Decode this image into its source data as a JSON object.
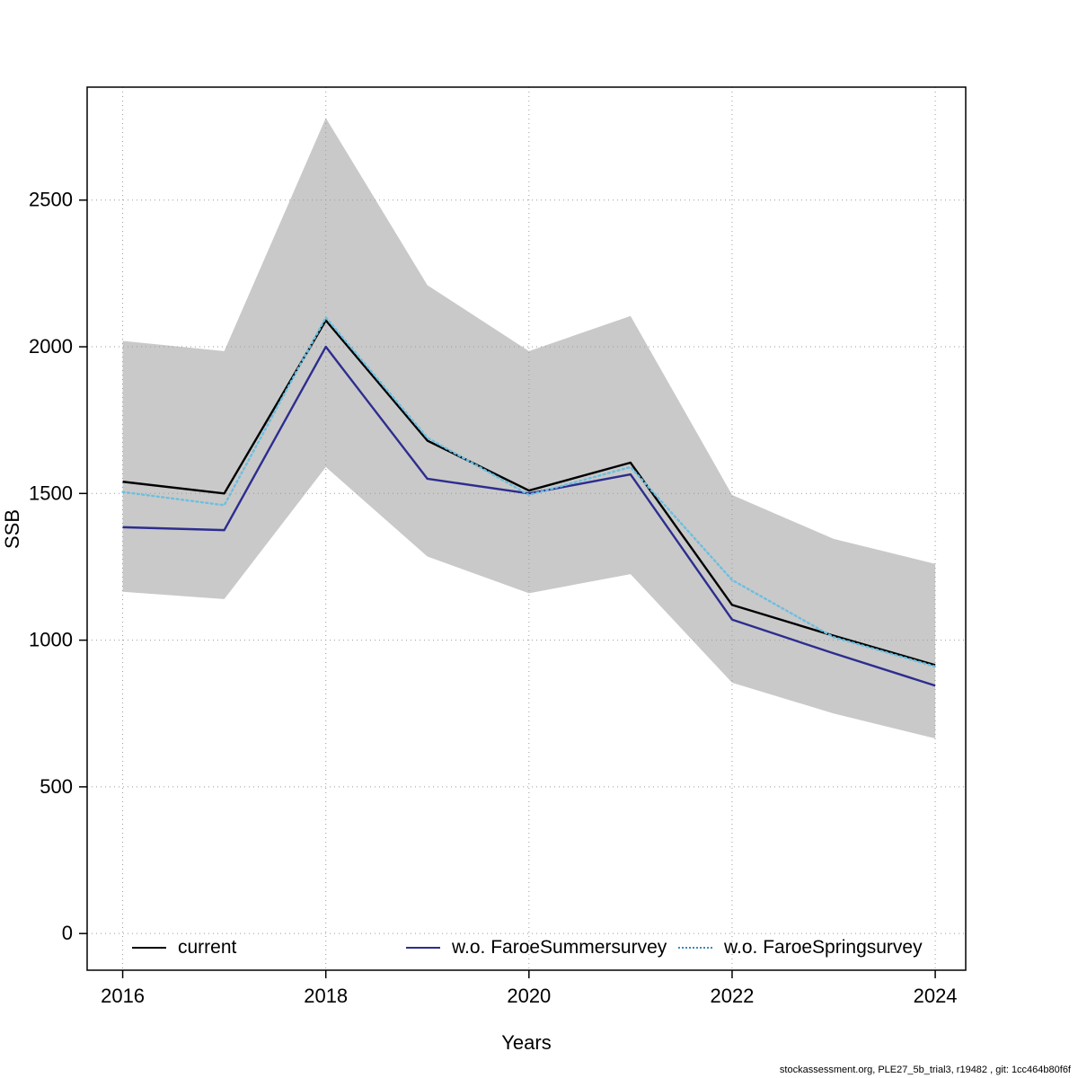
{
  "chart_data": {
    "type": "line",
    "title": "",
    "xlabel": "Years",
    "ylabel": "SSB",
    "x": [
      2016,
      2017,
      2018,
      2019,
      2020,
      2021,
      2022,
      2023,
      2024
    ],
    "xlim": [
      2015.65,
      2024.3
    ],
    "ylim": [
      -125,
      2885
    ],
    "xticks": [
      2016,
      2018,
      2020,
      2022,
      2024
    ],
    "yticks": [
      0,
      500,
      1000,
      1500,
      2000,
      2500
    ],
    "grid": true,
    "legend_position": "bottom-inside",
    "band": {
      "name": "current-confidence-interval",
      "color": "#c9c9c9",
      "lower": [
        1165,
        1140,
        1590,
        1285,
        1160,
        1225,
        855,
        750,
        665
      ],
      "upper": [
        2020,
        1985,
        2780,
        2210,
        1985,
        2105,
        1495,
        1345,
        1260
      ]
    },
    "series": [
      {
        "name": "current",
        "color": "#000000",
        "style": "solid",
        "values": [
          1540,
          1500,
          2090,
          1680,
          1510,
          1605,
          1120,
          1015,
          915
        ]
      },
      {
        "name": "w.o. FaroeSummersurvey",
        "color": "#2d2d8f",
        "style": "solid",
        "values": [
          1385,
          1375,
          2000,
          1550,
          1500,
          1565,
          1070,
          955,
          845
        ]
      },
      {
        "name": "w.o. FaroeSpringsurvey",
        "color": "#6bbfe0",
        "style": "dotted",
        "values": [
          1505,
          1460,
          2100,
          1690,
          1495,
          1590,
          1205,
          1010,
          910
        ]
      }
    ]
  },
  "axes": {
    "xlabel": "Years",
    "ylabel": "SSB"
  },
  "legend": {
    "items": [
      {
        "label": "current",
        "color": "#000000",
        "style": "solid"
      },
      {
        "label": "w.o. FaroeSummersurvey",
        "color": "#2d2d8f",
        "style": "solid"
      },
      {
        "label": "w.o. FaroeSpringsurvey",
        "color": "#3d88b8",
        "style": "dotted"
      }
    ]
  },
  "footer": {
    "text": "stockassessment.org, PLE27_5b_trial3, r19482 , git: 1cc464b80f6f"
  }
}
